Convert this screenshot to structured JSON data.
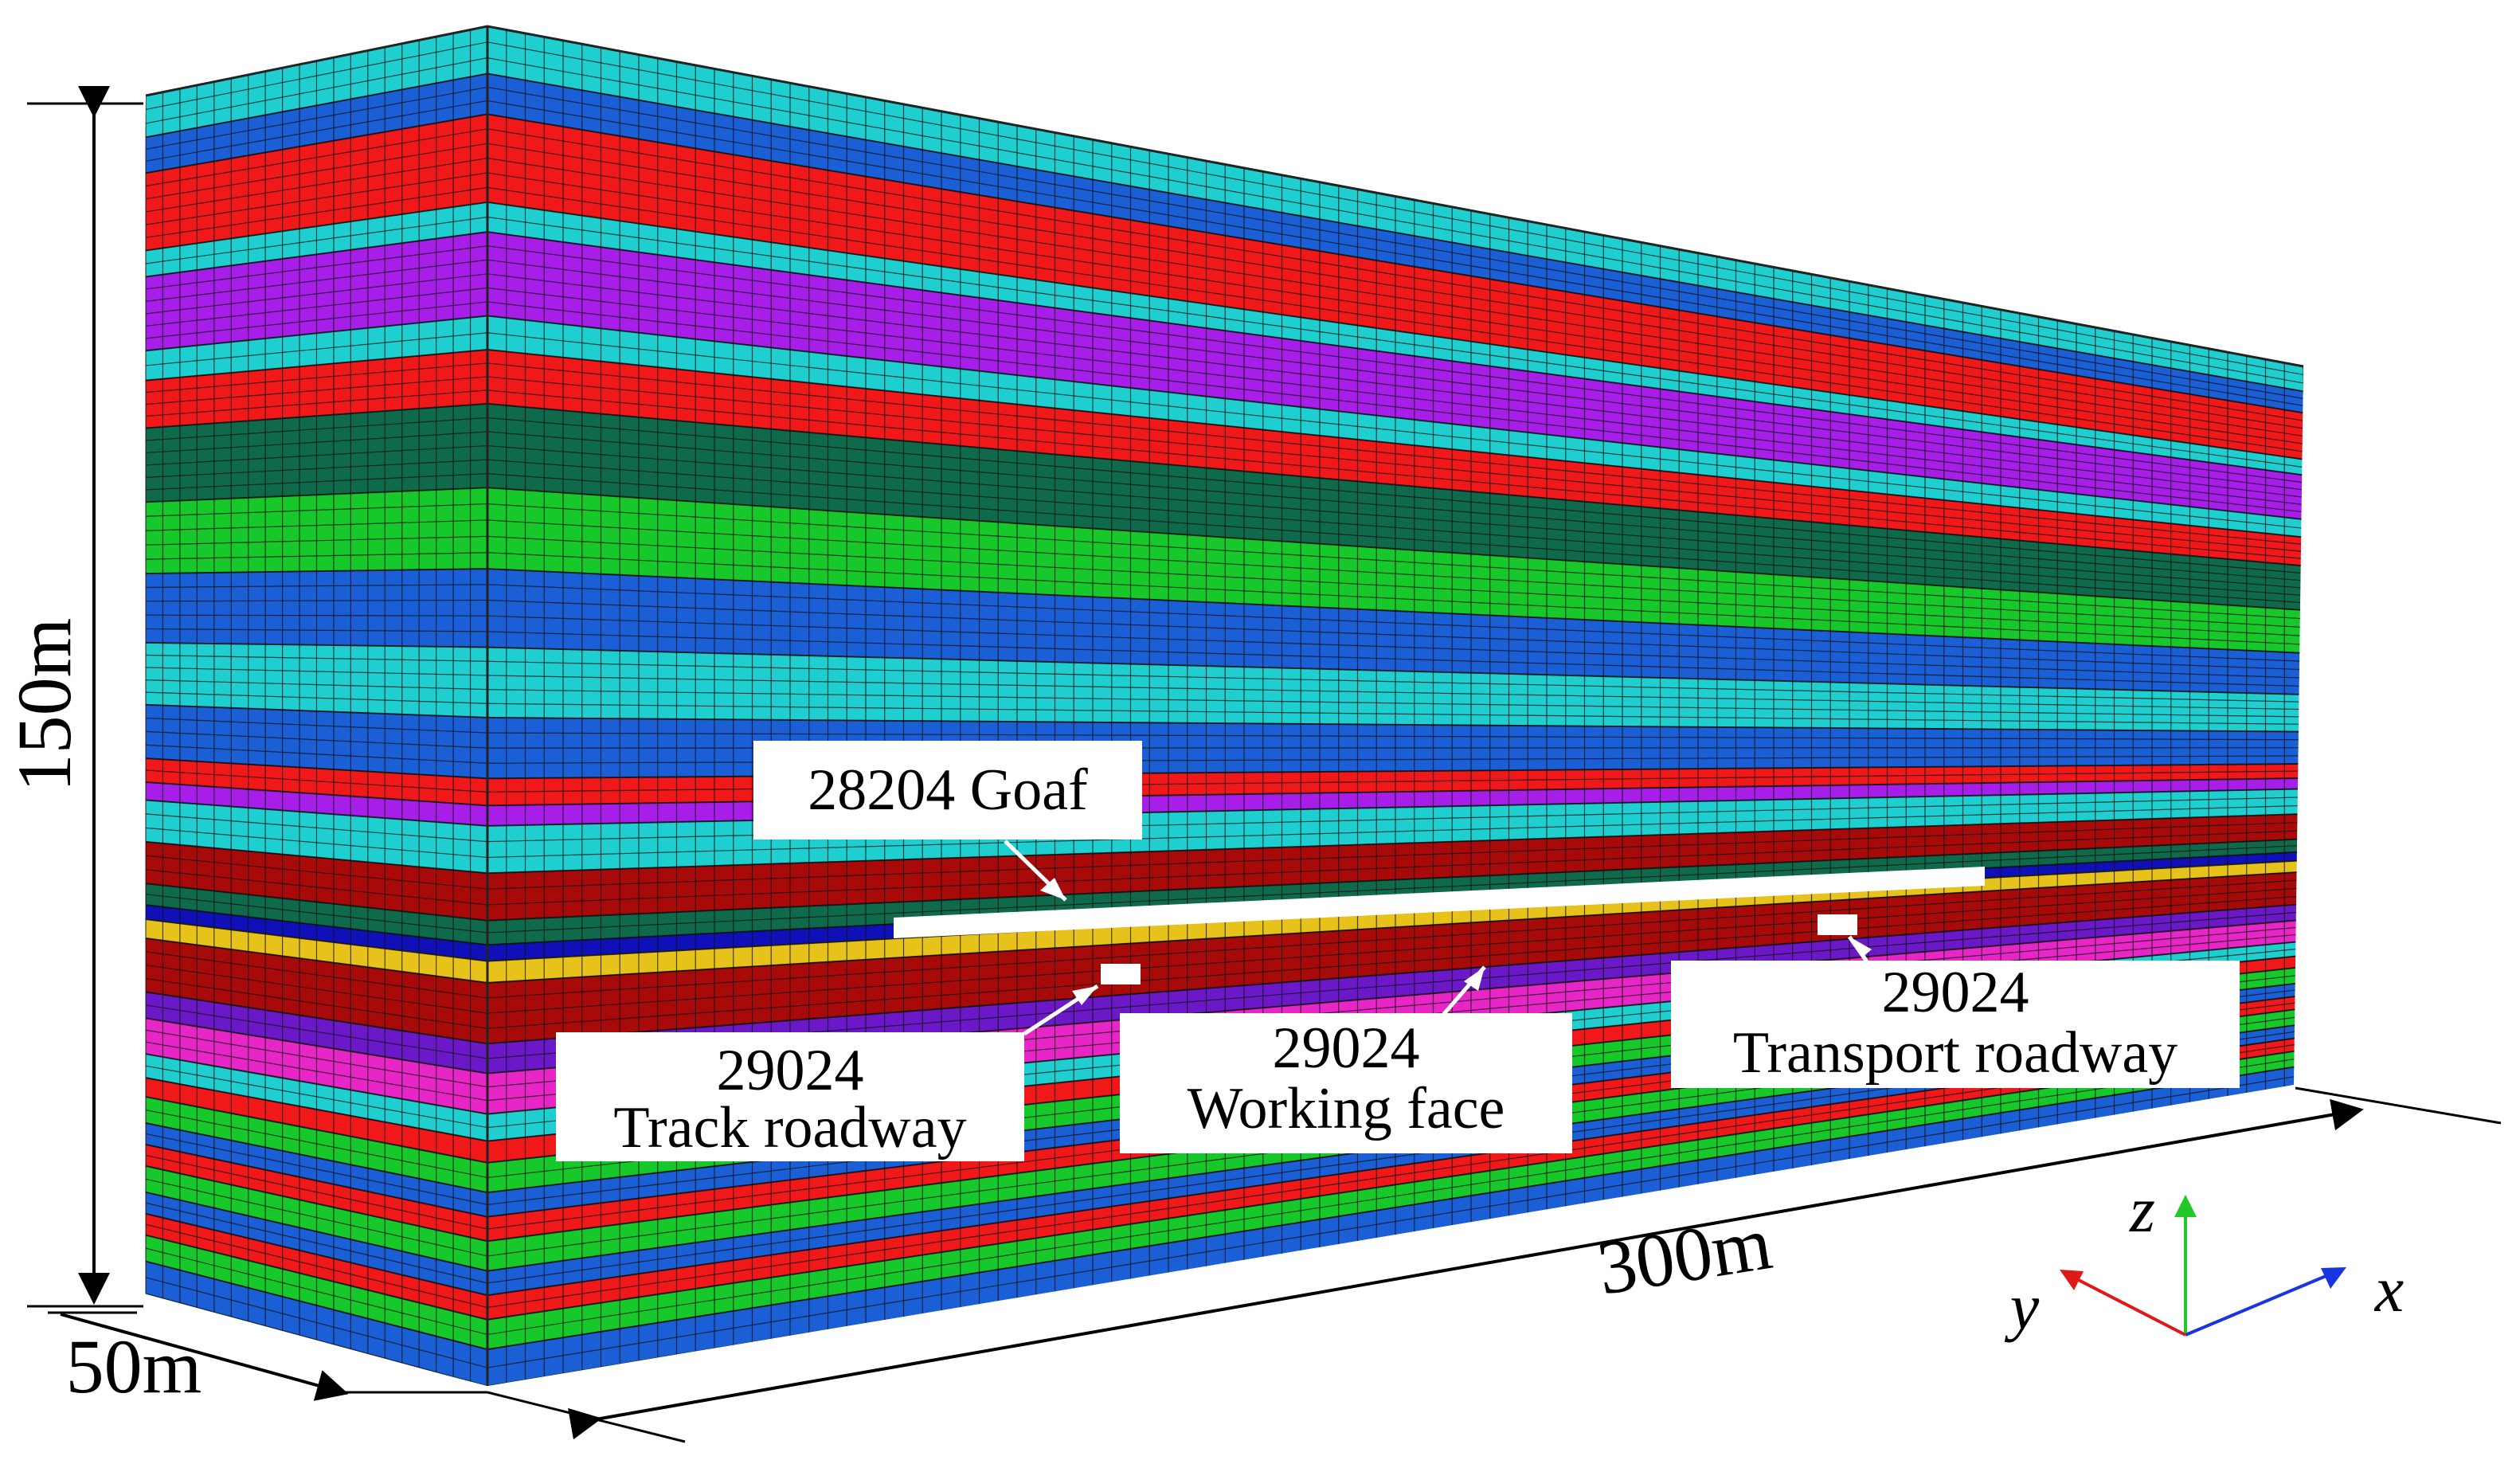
{
  "model": {
    "colors": {
      "cyan": "#1fcfcf",
      "blue": "#1a5fd6",
      "red": "#f01818",
      "purple": "#a61ee8",
      "darkgreen": "#0f6a4c",
      "green": "#17c82a",
      "darkred": "#a80a0a",
      "navy": "#1010b8",
      "yellow": "#e6c21a",
      "violet": "#6a18c8",
      "magenta": "#e825c6",
      "grid": "#101010"
    },
    "layers": [
      {
        "name": "cyan-1",
        "color": "cyan",
        "t": 0.035
      },
      {
        "name": "blue-1",
        "color": "blue",
        "t": 0.03
      },
      {
        "name": "red-1",
        "color": "red",
        "t": 0.065
      },
      {
        "name": "cyan-2",
        "color": "cyan",
        "t": 0.022
      },
      {
        "name": "purple-1",
        "color": "purple",
        "t": 0.062
      },
      {
        "name": "cyan-3",
        "color": "cyan",
        "t": 0.025
      },
      {
        "name": "red-2",
        "color": "red",
        "t": 0.04
      },
      {
        "name": "darkgreen-1",
        "color": "darkgreen",
        "t": 0.062
      },
      {
        "name": "green-1",
        "color": "green",
        "t": 0.06
      },
      {
        "name": "blue-2",
        "color": "blue",
        "t": 0.058
      },
      {
        "name": "cyan-4",
        "color": "cyan",
        "t": 0.052
      },
      {
        "name": "blue-3",
        "color": "blue",
        "t": 0.045
      },
      {
        "name": "red-3",
        "color": "red",
        "t": 0.02
      },
      {
        "name": "purple-2",
        "color": "purple",
        "t": 0.015
      },
      {
        "name": "cyan-5",
        "color": "cyan",
        "t": 0.035
      },
      {
        "name": "darkred-1",
        "color": "darkred",
        "t": 0.035
      },
      {
        "name": "darkgreen-2",
        "color": "darkgreen",
        "t": 0.018
      },
      {
        "name": "navy-1",
        "color": "navy",
        "t": 0.012
      },
      {
        "name": "yellow-seam",
        "color": "yellow",
        "t": 0.016
      },
      {
        "name": "darkred-coal",
        "color": "darkred",
        "t": 0.045
      },
      {
        "name": "violet-1",
        "color": "violet",
        "t": 0.022
      },
      {
        "name": "magenta-1",
        "color": "magenta",
        "t": 0.03
      },
      {
        "name": "cyan-6",
        "color": "cyan",
        "t": 0.02
      },
      {
        "name": "red-4",
        "color": "red",
        "t": 0.016
      },
      {
        "name": "green-2",
        "color": "green",
        "t": 0.022
      },
      {
        "name": "blue-4",
        "color": "blue",
        "t": 0.018
      },
      {
        "name": "red-5",
        "color": "red",
        "t": 0.018
      },
      {
        "name": "green-3",
        "color": "green",
        "t": 0.022
      },
      {
        "name": "blue-5",
        "color": "blue",
        "t": 0.018
      },
      {
        "name": "red-6",
        "color": "red",
        "t": 0.018
      },
      {
        "name": "green-4",
        "color": "green",
        "t": 0.022
      },
      {
        "name": "blue-6",
        "color": "blue",
        "t": 0.027
      }
    ]
  },
  "dimensions": {
    "height": "150m",
    "width": "50m",
    "length": "300m"
  },
  "labels": {
    "goaf": "28204 Goaf",
    "track": {
      "line1": "29024",
      "line2": "Track roadway"
    },
    "working": {
      "line1": "29024",
      "line2": "Working face"
    },
    "transport": {
      "line1": "29024",
      "line2": "Transport roadway"
    }
  },
  "axes": {
    "x": {
      "label": "x",
      "color": "#1a35e0"
    },
    "y": {
      "label": "y",
      "color": "#e01818"
    },
    "z": {
      "label": "z",
      "color": "#22c828"
    }
  }
}
